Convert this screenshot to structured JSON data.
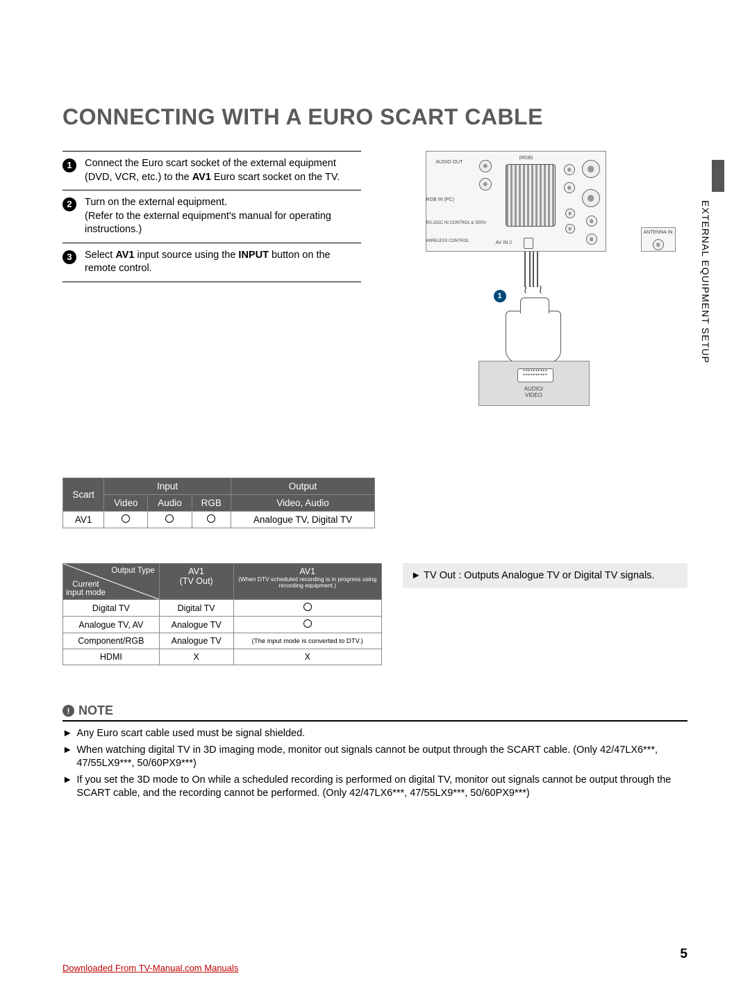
{
  "title": "CONNECTING WITH A EURO SCART CABLE",
  "side_label": "EXTERNAL EQUIPMENT SETUP",
  "steps": [
    {
      "num": "1",
      "html": "Connect the Euro scart socket of the external equipment (DVD, VCR, etc.) to the <b>AV1</b> Euro scart socket on the TV."
    },
    {
      "num": "2",
      "html": "Turn on the external equipment.<br>(Refer to the external equipment's manual for operating instructions.)"
    },
    {
      "num": "3",
      "html": "Select <b>AV1</b> input source using the <b>INPUT</b> button on the remote control."
    }
  ],
  "diagram": {
    "labels": {
      "audio_out": "AUDIO OUT",
      "rgb": "(RGB)",
      "rgb_in": "RGB IN (PC)",
      "control": "RS-232C IN CONTROL & SERV",
      "wireless": "WIRELESS CONTROL",
      "av_in": "AV IN 2",
      "antenna": "ANTENNA IN",
      "device_port": "++++++++++\n++++++++++",
      "device": "AUDIO/\nVIDEO",
      "callout": "1"
    }
  },
  "table1": {
    "headers": {
      "scart": "Scart",
      "input": "Input",
      "output": "Output",
      "video": "Video",
      "audio": "Audio",
      "rgb": "RGB",
      "va": "Video, Audio"
    },
    "row": {
      "name": "AV1",
      "video": "○",
      "audio": "○",
      "rgb": "○",
      "out": "Analogue TV, Digital TV"
    }
  },
  "table2": {
    "headers": {
      "diag_top": "Output Type",
      "diag_bot": "Current\ninput mode",
      "col2": "AV1\n(TV Out)",
      "col3_main": "AV1",
      "col3_sub": "(When DTV scheduled recording is in progress using recording equipment.)"
    },
    "rows": [
      {
        "a": "Digital TV",
        "b": "Digital TV",
        "c": "○",
        "c_circle": true
      },
      {
        "a": "Analogue TV, AV",
        "b": "Analogue TV",
        "c": "○",
        "c_circle": true
      },
      {
        "a": "Component/RGB",
        "b": "Analogue TV",
        "c": "(The input mode is converted to DTV.)",
        "c_circle": false,
        "c_small": true
      },
      {
        "a": "HDMI",
        "b": "X",
        "c": "X",
        "c_circle": false
      }
    ]
  },
  "tvout_text": "TV Out : Outputs Analogue TV or Digital TV signals.",
  "note": {
    "heading": "NOTE",
    "items": [
      "Any Euro scart cable used must be signal shielded.",
      "When watching digital TV in 3D imaging mode, monitor out signals cannot be output through the SCART cable. (Only 42/47LX6***, 47/55LX9***, 50/60PX9***)",
      "If you set the 3D mode to On while a scheduled recording is performed on digital TV, monitor out signals cannot be output through the SCART cable, and the recording cannot be performed. (Only 42/47LX6***, 47/55LX9***, 50/60PX9***)"
    ]
  },
  "page_number": "5",
  "footer": {
    "prefix": "Downloaded From ",
    "link_text": "TV-Manual.com Manuals"
  }
}
